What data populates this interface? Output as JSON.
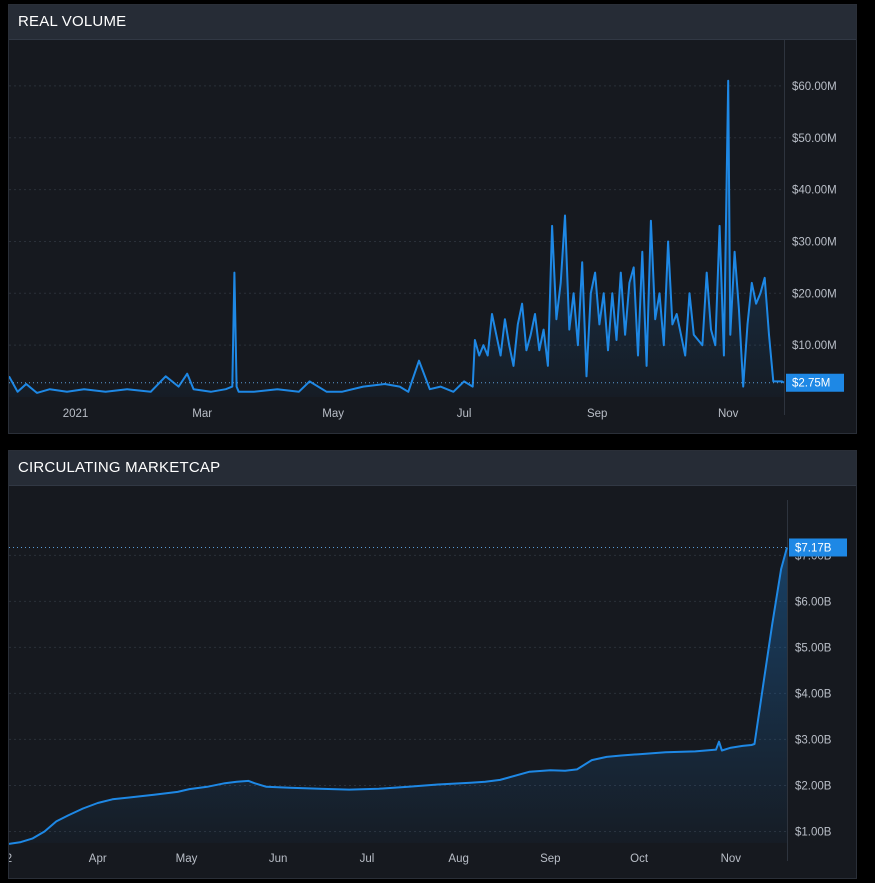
{
  "colors": {
    "accent": "#1e88e5",
    "background": "#16191f",
    "header": "#262c36",
    "grid": "#2a3039",
    "text": "#b9bec7"
  },
  "panels": {
    "volume": {
      "title": "REAL VOLUME"
    },
    "mcap": {
      "title": "CIRCULATING MARKETCAP"
    }
  },
  "chart_data": [
    {
      "type": "area",
      "title": "REAL VOLUME",
      "xlabel": "",
      "ylabel": "",
      "ylim": [
        0,
        65
      ],
      "y_unit": "millions USD",
      "grid": true,
      "y_ticks": [
        {
          "value": 10,
          "label": "$10.00M"
        },
        {
          "value": 20,
          "label": "$20.00M"
        },
        {
          "value": 30,
          "label": "$30.00M"
        },
        {
          "value": 40,
          "label": "$40.00M"
        },
        {
          "value": 50,
          "label": "$50.00M"
        },
        {
          "value": 60,
          "label": "$60.00M"
        }
      ],
      "x_ticks": [
        "2021",
        "Mar",
        "May",
        "Jul",
        "Sep",
        "Nov"
      ],
      "x_tick_dates": [
        "2021-01-01",
        "2021-03-01",
        "2021-05-01",
        "2021-07-01",
        "2021-09-01",
        "2021-11-01"
      ],
      "last_value_label": "$2.75M",
      "last_value": 2.75,
      "series": [
        {
          "x": [
            "2020-12-01",
            "2020-12-05",
            "2020-12-09",
            "2020-12-14",
            "2020-12-20",
            "2020-12-28",
            "2021-01-05",
            "2021-01-15",
            "2021-01-25",
            "2021-02-05",
            "2021-02-12",
            "2021-02-18",
            "2021-02-22",
            "2021-02-25",
            "2021-03-05",
            "2021-03-12",
            "2021-03-15",
            "2021-03-16",
            "2021-03-17",
            "2021-03-18",
            "2021-03-25",
            "2021-04-05",
            "2021-04-15",
            "2021-04-20",
            "2021-04-28",
            "2021-05-05",
            "2021-05-15",
            "2021-05-25",
            "2021-06-01",
            "2021-06-05",
            "2021-06-10",
            "2021-06-15",
            "2021-06-20",
            "2021-06-26",
            "2021-07-01",
            "2021-07-05",
            "2021-07-06",
            "2021-07-08",
            "2021-07-10",
            "2021-07-12",
            "2021-07-14",
            "2021-07-16",
            "2021-07-18",
            "2021-07-20",
            "2021-07-22",
            "2021-07-24",
            "2021-07-26",
            "2021-07-28",
            "2021-07-30",
            "2021-08-01",
            "2021-08-03",
            "2021-08-05",
            "2021-08-07",
            "2021-08-09",
            "2021-08-11",
            "2021-08-13",
            "2021-08-15",
            "2021-08-17",
            "2021-08-19",
            "2021-08-21",
            "2021-08-23",
            "2021-08-25",
            "2021-08-27",
            "2021-08-29",
            "2021-08-31",
            "2021-09-02",
            "2021-09-04",
            "2021-09-06",
            "2021-09-08",
            "2021-09-10",
            "2021-09-12",
            "2021-09-14",
            "2021-09-16",
            "2021-09-18",
            "2021-09-20",
            "2021-09-22",
            "2021-09-24",
            "2021-09-26",
            "2021-09-28",
            "2021-09-30",
            "2021-10-02",
            "2021-10-04",
            "2021-10-06",
            "2021-10-08",
            "2021-10-10",
            "2021-10-12",
            "2021-10-14",
            "2021-10-16",
            "2021-10-18",
            "2021-10-20",
            "2021-10-22",
            "2021-10-24",
            "2021-10-26",
            "2021-10-28",
            "2021-10-30",
            "2021-11-01",
            "2021-11-02",
            "2021-11-04",
            "2021-11-06",
            "2021-11-08",
            "2021-11-10",
            "2021-11-12",
            "2021-11-14",
            "2021-11-16",
            "2021-11-18",
            "2021-11-20",
            "2021-11-22",
            "2021-11-24",
            "2021-11-26",
            "2021-11-27"
          ],
          "values": [
            4,
            1,
            2.5,
            0.8,
            1.5,
            1,
            1.5,
            1,
            1.5,
            1,
            4,
            2,
            4.5,
            1.5,
            1,
            1.5,
            2,
            24,
            2,
            1,
            1,
            1.5,
            1,
            3,
            1,
            1,
            2,
            2.5,
            2,
            1,
            7,
            1.5,
            2,
            1,
            3,
            2,
            11,
            8,
            10,
            8,
            16,
            12,
            8,
            15,
            10,
            6,
            14,
            18,
            9,
            12,
            16,
            9,
            13,
            6,
            33,
            15,
            22,
            35,
            13,
            20,
            10,
            26,
            4,
            20,
            24,
            14,
            20,
            9,
            20,
            11,
            24,
            12,
            22,
            25,
            8,
            28,
            6,
            34,
            15,
            20,
            10,
            30,
            14,
            16,
            12,
            8,
            20,
            12,
            11,
            10,
            24,
            13,
            10,
            33,
            8,
            61,
            12,
            28,
            17,
            2,
            14,
            22,
            18,
            20,
            23,
            12,
            3,
            3,
            3,
            2.75
          ]
        }
      ]
    },
    {
      "type": "area",
      "title": "CIRCULATING MARKETCAP",
      "xlabel": "",
      "ylabel": "",
      "ylim": [
        0.75,
        7.55
      ],
      "y_unit": "billions USD",
      "grid": true,
      "y_ticks": [
        {
          "value": 1,
          "label": "$1.00B"
        },
        {
          "value": 2,
          "label": "$2.00B"
        },
        {
          "value": 3,
          "label": "$3.00B"
        },
        {
          "value": 4,
          "label": "$4.00B"
        },
        {
          "value": 5,
          "label": "$5.00B"
        },
        {
          "value": 6,
          "label": "$6.00B"
        },
        {
          "value": 7,
          "label": "$7.00B"
        }
      ],
      "x_ticks": [
        "2",
        "Apr",
        "May",
        "Jun",
        "Jul",
        "Aug",
        "Sep",
        "Oct",
        "Nov"
      ],
      "x_tick_dates": [
        "2021-03-02",
        "2021-04-01",
        "2021-05-01",
        "2021-06-01",
        "2021-07-01",
        "2021-08-01",
        "2021-09-01",
        "2021-10-01",
        "2021-11-01"
      ],
      "last_value_label": "$7.17B",
      "last_value": 7.17,
      "series": [
        {
          "x": [
            "2021-03-02",
            "2021-03-06",
            "2021-03-10",
            "2021-03-14",
            "2021-03-18",
            "2021-03-22",
            "2021-03-27",
            "2021-04-01",
            "2021-04-06",
            "2021-04-12",
            "2021-04-20",
            "2021-04-28",
            "2021-05-02",
            "2021-05-08",
            "2021-05-14",
            "2021-05-18",
            "2021-05-22",
            "2021-05-24",
            "2021-05-28",
            "2021-06-05",
            "2021-06-15",
            "2021-06-25",
            "2021-07-05",
            "2021-07-10",
            "2021-07-15",
            "2021-07-25",
            "2021-08-05",
            "2021-08-10",
            "2021-08-15",
            "2021-08-25",
            "2021-09-01",
            "2021-09-06",
            "2021-09-10",
            "2021-09-15",
            "2021-09-20",
            "2021-09-25",
            "2021-10-01",
            "2021-10-10",
            "2021-10-20",
            "2021-10-27",
            "2021-10-28",
            "2021-10-29",
            "2021-11-01",
            "2021-11-05",
            "2021-11-08",
            "2021-11-09",
            "2021-11-12",
            "2021-11-15",
            "2021-11-18",
            "2021-11-20"
          ],
          "values": [
            0.73,
            0.77,
            0.85,
            1.0,
            1.22,
            1.35,
            1.5,
            1.62,
            1.7,
            1.74,
            1.8,
            1.86,
            1.92,
            1.97,
            2.05,
            2.08,
            2.1,
            2.05,
            1.97,
            1.95,
            1.93,
            1.91,
            1.93,
            1.95,
            1.97,
            2.02,
            2.06,
            2.08,
            2.12,
            2.3,
            2.33,
            2.32,
            2.35,
            2.55,
            2.62,
            2.65,
            2.68,
            2.72,
            2.74,
            2.78,
            2.95,
            2.76,
            2.82,
            2.86,
            2.88,
            2.9,
            4.2,
            5.5,
            6.7,
            7.17
          ]
        }
      ]
    }
  ]
}
